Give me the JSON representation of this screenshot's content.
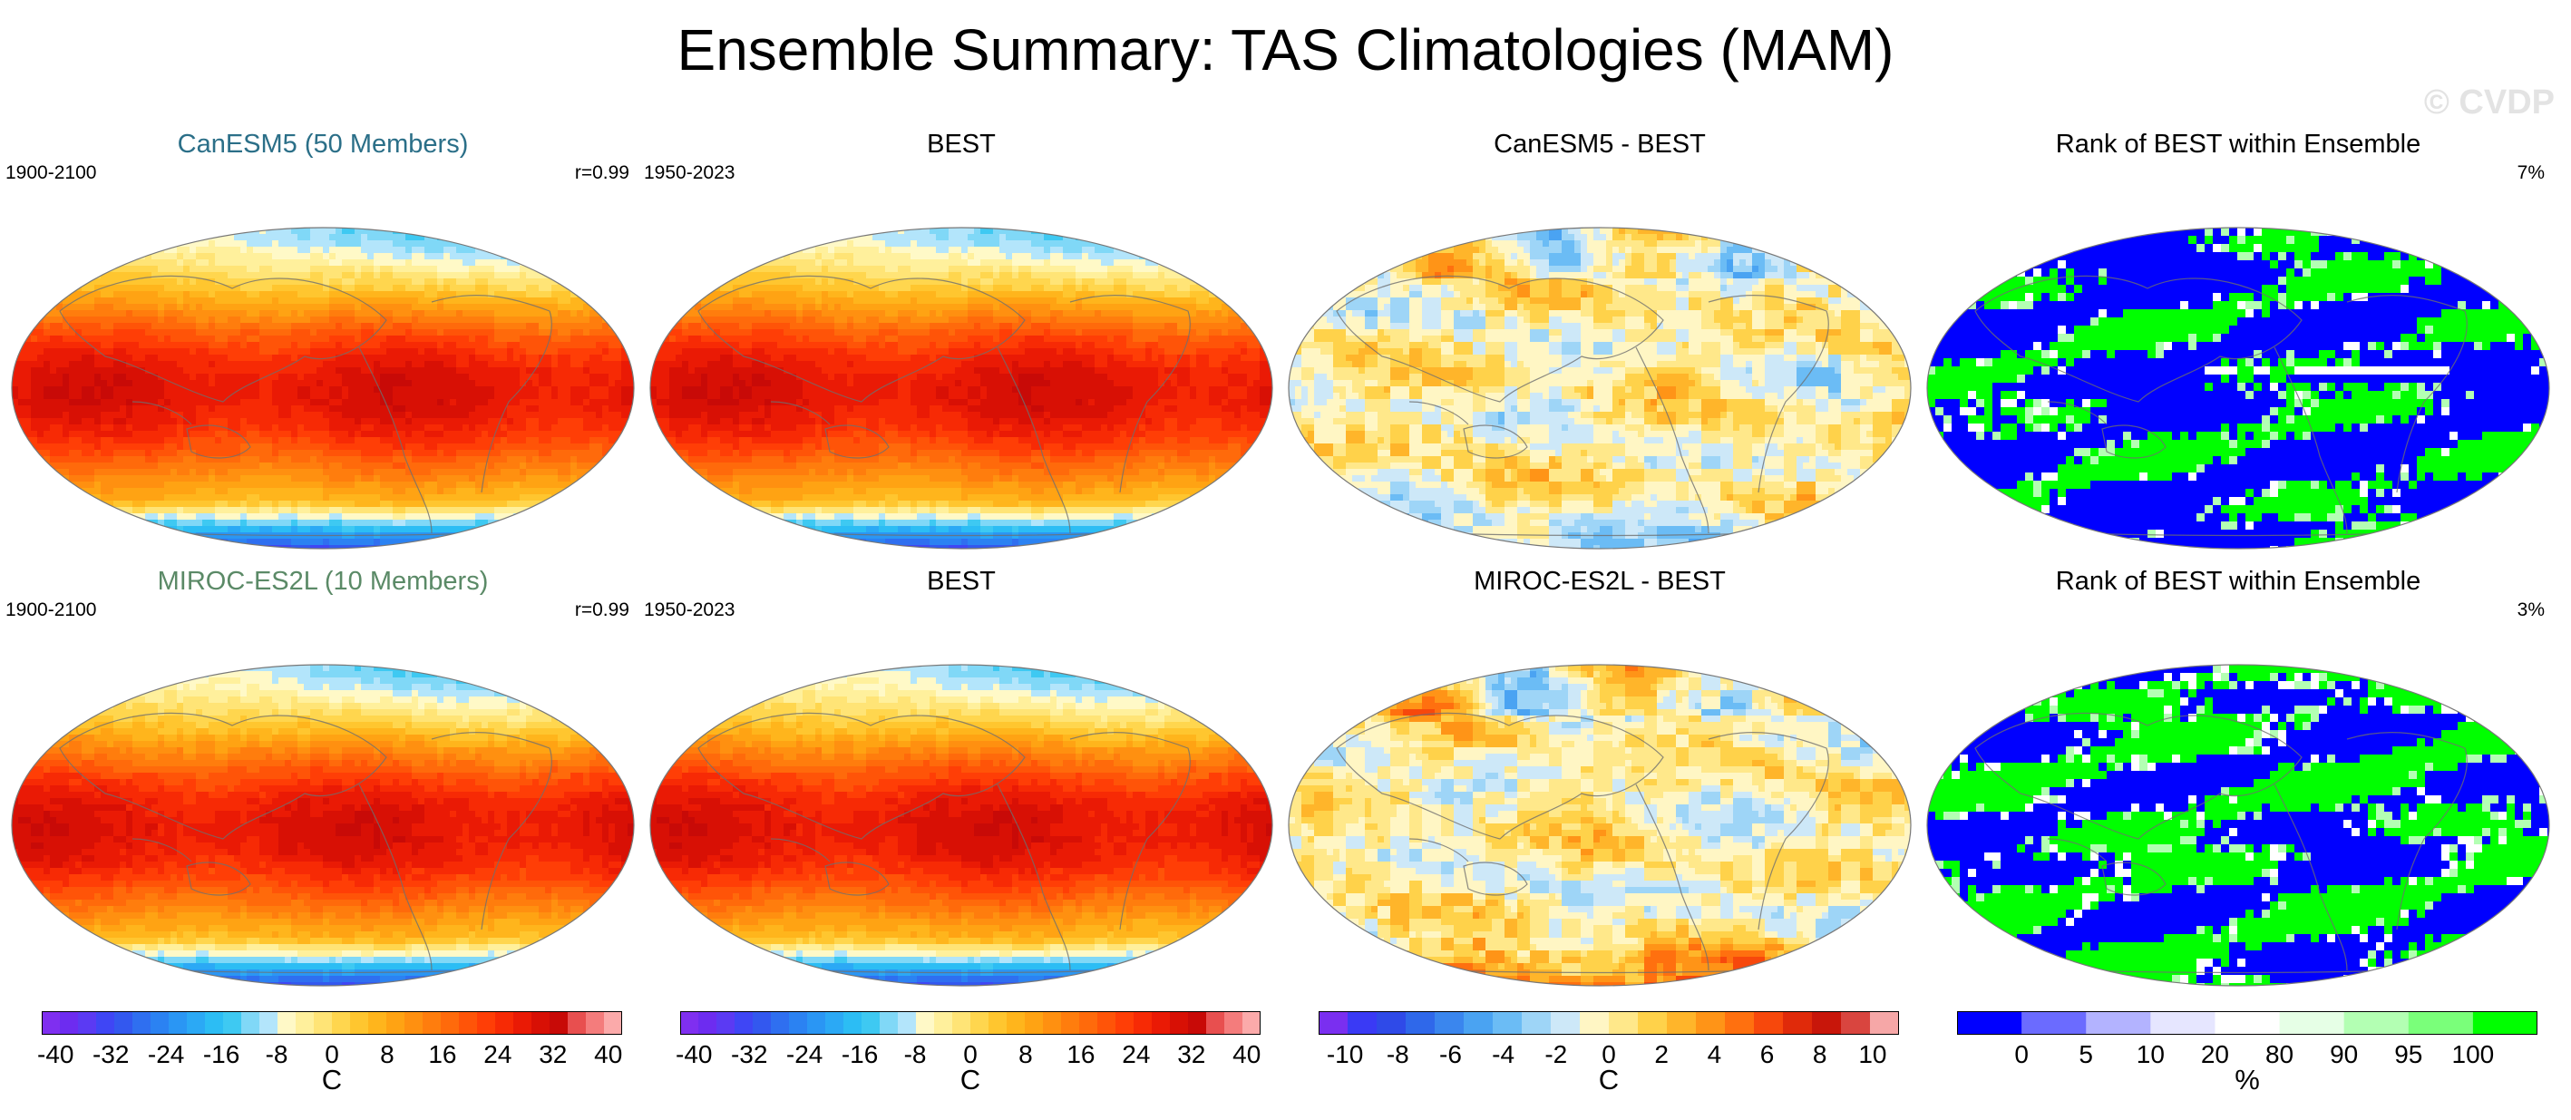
{
  "title": "Ensemble Summary: TAS Climatologies (MAM)",
  "watermark": "© CVDP",
  "panels": [
    {
      "title": "CanESM5 (50 Members)",
      "title_color": "#2b6f88",
      "left": "1900-2100",
      "right": "r=0.99",
      "kind": "clim"
    },
    {
      "title": "BEST",
      "title_color": "#000000",
      "left": "1950-2023",
      "right": "",
      "kind": "clim"
    },
    {
      "title": "CanESM5 - BEST",
      "title_color": "#000000",
      "left": "",
      "right": "",
      "kind": "diff"
    },
    {
      "title": "Rank of BEST within Ensemble",
      "title_color": "#000000",
      "left": "",
      "right": "7%",
      "kind": "rank"
    },
    {
      "title": "MIROC-ES2L (10 Members)",
      "title_color": "#5b8a67",
      "left": "1900-2100",
      "right": "r=0.99",
      "kind": "clim"
    },
    {
      "title": "BEST",
      "title_color": "#000000",
      "left": "1950-2023",
      "right": "",
      "kind": "clim"
    },
    {
      "title": "MIROC-ES2L - BEST",
      "title_color": "#000000",
      "left": "",
      "right": "",
      "kind": "diff"
    },
    {
      "title": "Rank of BEST within Ensemble",
      "title_color": "#000000",
      "left": "",
      "right": "3%",
      "kind": "rank"
    }
  ],
  "colorbars": [
    {
      "label": "C",
      "ticks": [
        "-40",
        "-32",
        "-24",
        "-16",
        "-8",
        "0",
        "8",
        "16",
        "24",
        "32",
        "40"
      ],
      "range": [
        -42,
        42
      ],
      "colors": [
        "#7f2ff0",
        "#6d2cf0",
        "#5b3af3",
        "#3f46f5",
        "#3358ef",
        "#2f6ff0",
        "#2b82f2",
        "#2a96f4",
        "#2ba9f5",
        "#2cbdf4",
        "#3ec9f2",
        "#80d8f7",
        "#b3e5fb",
        "#fff9c7",
        "#fff09c",
        "#ffe476",
        "#ffd64e",
        "#ffc62f",
        "#ffb51c",
        "#ffa313",
        "#ff9010",
        "#ff7d0d",
        "#ff6a0b",
        "#ff5408",
        "#ff3e06",
        "#f72a05",
        "#ea1a05",
        "#d81005",
        "#c80a07",
        "#e84f4f",
        "#f47c7c",
        "#fbaaaa"
      ]
    },
    {
      "label": "C",
      "ticks": [
        "-40",
        "-32",
        "-24",
        "-16",
        "-8",
        "0",
        "8",
        "16",
        "24",
        "32",
        "40"
      ],
      "range": [
        -42,
        42
      ],
      "colors": [
        "#7f2ff0",
        "#6d2cf0",
        "#5b3af3",
        "#3f46f5",
        "#3358ef",
        "#2f6ff0",
        "#2b82f2",
        "#2a96f4",
        "#2ba9f5",
        "#2cbdf4",
        "#3ec9f2",
        "#80d8f7",
        "#b3e5fb",
        "#fff9c7",
        "#fff09c",
        "#ffe476",
        "#ffd64e",
        "#ffc62f",
        "#ffb51c",
        "#ffa313",
        "#ff9010",
        "#ff7d0d",
        "#ff6a0b",
        "#ff5408",
        "#ff3e06",
        "#f72a05",
        "#ea1a05",
        "#d81005",
        "#c80a07",
        "#e84f4f",
        "#f47c7c",
        "#fbaaaa"
      ]
    },
    {
      "label": "C",
      "ticks": [
        "-10",
        "-8",
        "-6",
        "-4",
        "-2",
        "0",
        "2",
        "4",
        "6",
        "8",
        "10"
      ],
      "range": [
        -11,
        11
      ],
      "colors": [
        "#7a2ff0",
        "#3a3af5",
        "#2f4ae8",
        "#2f68ea",
        "#3a86ee",
        "#4aa3f2",
        "#6bbcf5",
        "#9ed5f7",
        "#cde8f8",
        "#fff6c4",
        "#ffe88a",
        "#ffd24a",
        "#ffb52a",
        "#ff9417",
        "#ff700f",
        "#f7480c",
        "#e02a0a",
        "#c8160a",
        "#d9453f",
        "#f6a7a7"
      ]
    },
    {
      "label": "%",
      "ticks": [
        "0",
        "5",
        "10",
        "20",
        "80",
        "90",
        "95",
        "100"
      ],
      "tick_values": [
        0,
        5,
        10,
        20,
        80,
        90,
        95,
        100
      ],
      "edges": [
        -5,
        0,
        5,
        10,
        20,
        80,
        90,
        95,
        100,
        105
      ],
      "colors": [
        "#0000ff",
        "#6b6bff",
        "#b3b3ff",
        "#e6e6ff",
        "#ffffff",
        "#e6ffe6",
        "#b3ffb3",
        "#7aff7a",
        "#00ff00"
      ]
    }
  ],
  "chart_data": {
    "type": "heatmap",
    "description_title": "Ensemble Summary: TAS Climatologies (MAM)",
    "variable": "TAS",
    "season": "MAM",
    "units": [
      "C",
      "C",
      "C",
      "%"
    ],
    "rows": [
      {
        "model": "CanESM5",
        "members": 50,
        "model_period": "1900-2100",
        "obs": "BEST",
        "obs_period": "1950-2023",
        "pattern_correlation": 0.99,
        "rank_summary": "7%"
      },
      {
        "model": "MIROC-ES2L",
        "members": 10,
        "model_period": "1900-2100",
        "obs": "BEST",
        "obs_period": "1950-2023",
        "pattern_correlation": 0.99,
        "rank_summary": "3%"
      }
    ]
  }
}
